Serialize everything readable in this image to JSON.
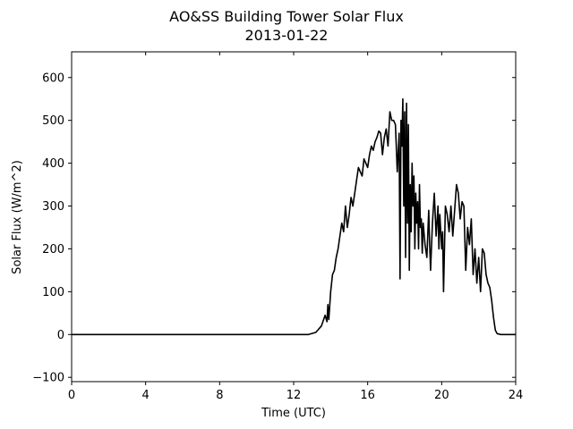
{
  "chart_data": {
    "type": "line",
    "title": "AO&SS Building Tower Solar Flux",
    "subtitle": "2013-01-22",
    "xlabel": "Time (UTC)",
    "ylabel": "Solar Flux (W/m^2)",
    "xlim": [
      0,
      24
    ],
    "ylim": [
      -110,
      660
    ],
    "xticks": [
      0,
      4,
      8,
      12,
      16,
      20,
      24
    ],
    "yticks": [
      -100,
      0,
      100,
      200,
      300,
      400,
      500,
      600
    ],
    "grid": false,
    "legend": "none",
    "series": [
      {
        "color": "#000000",
        "x": [
          0,
          12.8,
          13.2,
          13.5,
          13.7,
          13.8,
          13.85,
          13.9,
          14.0,
          14.1,
          14.2,
          14.3,
          14.4,
          14.5,
          14.6,
          14.7,
          14.8,
          14.9,
          15.0,
          15.1,
          15.2,
          15.3,
          15.4,
          15.5,
          15.6,
          15.7,
          15.8,
          15.9,
          16.0,
          16.1,
          16.2,
          16.3,
          16.4,
          16.5,
          16.6,
          16.7,
          16.8,
          16.9,
          17.0,
          17.1,
          17.2,
          17.3,
          17.4,
          17.5,
          17.6,
          17.7,
          17.75,
          17.8,
          17.85,
          17.9,
          17.95,
          18.0,
          18.05,
          18.1,
          18.15,
          18.2,
          18.25,
          18.3,
          18.35,
          18.4,
          18.45,
          18.5,
          18.55,
          18.6,
          18.65,
          18.7,
          18.75,
          18.8,
          18.85,
          18.9,
          18.95,
          19.0,
          19.1,
          19.2,
          19.3,
          19.35,
          19.4,
          19.5,
          19.6,
          19.7,
          19.8,
          19.85,
          19.9,
          20.0,
          20.05,
          20.1,
          20.2,
          20.3,
          20.4,
          20.5,
          20.6,
          20.7,
          20.8,
          20.9,
          21.0,
          21.1,
          21.2,
          21.3,
          21.4,
          21.5,
          21.6,
          21.7,
          21.8,
          21.9,
          22.0,
          22.1,
          22.2,
          22.3,
          22.4,
          22.5,
          22.6,
          22.7,
          22.8,
          22.9,
          23.0,
          23.2,
          24
        ],
        "y": [
          0,
          0,
          5,
          20,
          45,
          30,
          70,
          35,
          100,
          140,
          150,
          180,
          200,
          230,
          260,
          240,
          300,
          250,
          280,
          320,
          300,
          330,
          360,
          390,
          380,
          370,
          410,
          400,
          390,
          420,
          440,
          430,
          450,
          460,
          475,
          470,
          420,
          460,
          480,
          440,
          520,
          500,
          500,
          490,
          380,
          470,
          130,
          500,
          440,
          550,
          300,
          520,
          180,
          540,
          260,
          490,
          150,
          350,
          240,
          400,
          300,
          370,
          200,
          330,
          260,
          310,
          200,
          350,
          250,
          270,
          190,
          260,
          210,
          180,
          290,
          210,
          150,
          260,
          330,
          230,
          300,
          200,
          280,
          200,
          240,
          100,
          300,
          280,
          240,
          300,
          230,
          290,
          350,
          330,
          270,
          310,
          300,
          150,
          250,
          210,
          270,
          140,
          200,
          120,
          180,
          100,
          200,
          190,
          140,
          120,
          110,
          80,
          40,
          10,
          2,
          0,
          0
        ],
        "noise": 0
      }
    ]
  }
}
